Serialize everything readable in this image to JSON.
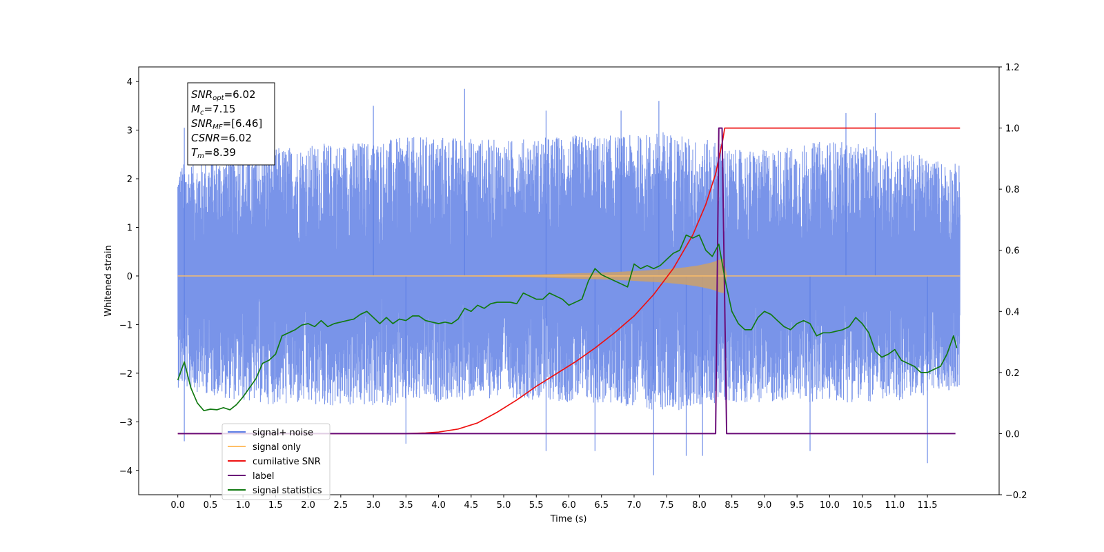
{
  "chart_data": {
    "type": "line",
    "xlabel": "Time (s)",
    "ylabel": "Whitened strain",
    "xlim": [
      -0.6,
      12.6
    ],
    "ylim": [
      -4.5,
      4.3
    ],
    "y2lim": [
      -0.2,
      1.2
    ],
    "x_ticks": [
      "0.0",
      "0.5",
      "1.0",
      "1.5",
      "2.0",
      "2.5",
      "3.0",
      "3.5",
      "4.0",
      "4.5",
      "5.0",
      "5.5",
      "6.0",
      "6.5",
      "7.0",
      "7.5",
      "8.0",
      "8.5",
      "9.0",
      "9.5",
      "10.0",
      "10.5",
      "11.0",
      "11.5"
    ],
    "y_ticks": [
      "4",
      "3",
      "2",
      "1",
      "0",
      "−1",
      "−2",
      "−3",
      "−4"
    ],
    "y2_ticks": [
      "1.2",
      "1.0",
      "0.8",
      "0.6",
      "0.4",
      "0.2",
      "0.0",
      "−0.2"
    ],
    "annotation": {
      "lines": [
        {
          "sym": "SNR",
          "sub": "opt",
          "rest": "=6.02"
        },
        {
          "sym": "M",
          "sub": "c",
          "rest": "=7.15"
        },
        {
          "sym": "SNR",
          "sub": "MF",
          "rest": "=[6.46]"
        },
        {
          "sym": "CSNR",
          "sub": "",
          "rest": "=6.02"
        },
        {
          "sym": "T",
          "sub": "m",
          "rest": "=8.39"
        }
      ]
    },
    "legend": {
      "location": "lower-left",
      "entries": [
        {
          "label": "signal+ noise",
          "color": "#5b7ce4"
        },
        {
          "label": "signal only",
          "color": "#ffbf66"
        },
        {
          "label": "cumilative SNR",
          "color": "#ee1111"
        },
        {
          "label": "label",
          "color": "#6a0b78"
        },
        {
          "label": "signal statistics",
          "color": "#127a12"
        }
      ]
    },
    "series": [
      {
        "name": "signal+ noise",
        "axis": "left",
        "color": "#5b7ce4",
        "x_range": [
          0.0,
          12.0
        ],
        "envelope_x": [
          0.0,
          1.0,
          2.0,
          3.0,
          4.0,
          5.0,
          6.0,
          7.0,
          7.5,
          8.0,
          8.3,
          8.5,
          9.0,
          10.0,
          11.0,
          12.0
        ],
        "upper": [
          2.3,
          2.6,
          2.7,
          2.8,
          2.9,
          2.8,
          2.9,
          2.9,
          3.0,
          2.8,
          2.8,
          2.6,
          2.6,
          2.8,
          2.6,
          2.3
        ],
        "lower": [
          -2.3,
          -2.6,
          -2.7,
          -2.7,
          -2.6,
          -2.5,
          -2.6,
          -2.7,
          -2.8,
          -2.7,
          -2.6,
          -2.6,
          -2.6,
          -2.6,
          -2.6,
          -2.3
        ],
        "peaks": [
          {
            "x": 0.1,
            "y": 3.05
          },
          {
            "x": 4.4,
            "y": 3.85
          },
          {
            "x": 7.38,
            "y": 3.6
          },
          {
            "x": 3.0,
            "y": 3.5
          },
          {
            "x": 5.65,
            "y": 3.4
          },
          {
            "x": 10.25,
            "y": 3.35
          },
          {
            "x": 10.7,
            "y": 3.35
          },
          {
            "x": 6.8,
            "y": 3.4
          },
          {
            "x": 7.3,
            "y": -4.1
          },
          {
            "x": 11.5,
            "y": -3.85
          },
          {
            "x": 7.8,
            "y": -3.7
          },
          {
            "x": 8.05,
            "y": -3.7
          },
          {
            "x": 5.65,
            "y": -3.6
          },
          {
            "x": 6.4,
            "y": -3.6
          },
          {
            "x": 3.5,
            "y": -3.45
          },
          {
            "x": 0.1,
            "y": -3.4
          },
          {
            "x": 9.7,
            "y": -3.6
          }
        ]
      },
      {
        "name": "signal only",
        "axis": "left",
        "color": "#ffbf66",
        "x": [
          0.0,
          3.0,
          4.5,
          5.5,
          6.5,
          7.0,
          7.5,
          7.8,
          8.0,
          8.2,
          8.3,
          8.38,
          8.42,
          12.0
        ],
        "amp": [
          0.0,
          0.0,
          0.01,
          0.03,
          0.07,
          0.1,
          0.14,
          0.18,
          0.22,
          0.28,
          0.33,
          0.36,
          0.0,
          0.0
        ]
      },
      {
        "name": "cumilative SNR",
        "axis": "right",
        "color": "#ee1111",
        "x": [
          0.0,
          3.5,
          3.8,
          4.0,
          4.3,
          4.6,
          4.9,
          5.2,
          5.5,
          5.8,
          6.1,
          6.4,
          6.7,
          7.0,
          7.3,
          7.6,
          7.9,
          8.1,
          8.25,
          8.36,
          8.39,
          12.0
        ],
        "y": [
          0.0,
          0.0,
          0.002,
          0.005,
          0.015,
          0.035,
          0.07,
          0.11,
          0.155,
          0.195,
          0.235,
          0.28,
          0.33,
          0.385,
          0.455,
          0.54,
          0.65,
          0.75,
          0.85,
          0.96,
          1.0,
          1.0
        ]
      },
      {
        "name": "label",
        "axis": "right",
        "color": "#6a0b78",
        "x": [
          0.0,
          8.25,
          8.3,
          8.35,
          8.42,
          8.45,
          11.93
        ],
        "y": [
          0.0,
          0.0,
          1.0,
          1.0,
          0.0,
          0.0,
          0.0
        ]
      },
      {
        "name": "signal statistics",
        "axis": "right",
        "color": "#127a12",
        "x": [
          0.0,
          0.1,
          0.2,
          0.3,
          0.4,
          0.5,
          0.6,
          0.7,
          0.8,
          0.9,
          1.0,
          1.1,
          1.2,
          1.3,
          1.4,
          1.5,
          1.6,
          1.7,
          1.8,
          1.9,
          2.0,
          2.1,
          2.2,
          2.3,
          2.4,
          2.5,
          2.6,
          2.7,
          2.8,
          2.9,
          3.0,
          3.1,
          3.2,
          3.3,
          3.4,
          3.5,
          3.6,
          3.7,
          3.8,
          3.9,
          4.0,
          4.1,
          4.2,
          4.3,
          4.4,
          4.5,
          4.6,
          4.7,
          4.8,
          4.9,
          5.0,
          5.1,
          5.2,
          5.3,
          5.4,
          5.5,
          5.6,
          5.7,
          5.8,
          5.9,
          6.0,
          6.1,
          6.2,
          6.3,
          6.4,
          6.5,
          6.6,
          6.7,
          6.8,
          6.9,
          7.0,
          7.1,
          7.2,
          7.3,
          7.4,
          7.5,
          7.6,
          7.7,
          7.8,
          7.9,
          8.0,
          8.1,
          8.2,
          8.3,
          8.4,
          8.5,
          8.6,
          8.7,
          8.8,
          8.9,
          9.0,
          9.1,
          9.2,
          9.3,
          9.4,
          9.5,
          9.6,
          9.7,
          9.8,
          9.9,
          10.0,
          10.1,
          10.2,
          10.3,
          10.4,
          10.5,
          10.6,
          10.7,
          10.8,
          10.9,
          11.0,
          11.1,
          11.2,
          11.3,
          11.4,
          11.5,
          11.6,
          11.7,
          11.8,
          11.9,
          11.95
        ],
        "y": [
          0.175,
          0.235,
          0.15,
          0.1,
          0.075,
          0.08,
          0.078,
          0.085,
          0.078,
          0.095,
          0.12,
          0.15,
          0.18,
          0.23,
          0.24,
          0.26,
          0.32,
          0.33,
          0.34,
          0.355,
          0.36,
          0.35,
          0.37,
          0.35,
          0.36,
          0.365,
          0.37,
          0.375,
          0.39,
          0.4,
          0.38,
          0.36,
          0.38,
          0.36,
          0.375,
          0.37,
          0.385,
          0.385,
          0.37,
          0.365,
          0.36,
          0.365,
          0.36,
          0.375,
          0.41,
          0.4,
          0.42,
          0.41,
          0.425,
          0.43,
          0.43,
          0.43,
          0.425,
          0.46,
          0.45,
          0.44,
          0.44,
          0.46,
          0.45,
          0.44,
          0.42,
          0.43,
          0.44,
          0.5,
          0.54,
          0.52,
          0.51,
          0.5,
          0.49,
          0.48,
          0.555,
          0.54,
          0.55,
          0.54,
          0.55,
          0.57,
          0.59,
          0.6,
          0.65,
          0.64,
          0.65,
          0.6,
          0.58,
          0.62,
          0.5,
          0.4,
          0.36,
          0.34,
          0.34,
          0.38,
          0.4,
          0.39,
          0.37,
          0.35,
          0.34,
          0.36,
          0.37,
          0.36,
          0.32,
          0.33,
          0.33,
          0.335,
          0.34,
          0.35,
          0.38,
          0.36,
          0.33,
          0.27,
          0.25,
          0.26,
          0.275,
          0.24,
          0.23,
          0.22,
          0.2,
          0.2,
          0.21,
          0.22,
          0.26,
          0.32,
          0.28
        ]
      }
    ]
  }
}
